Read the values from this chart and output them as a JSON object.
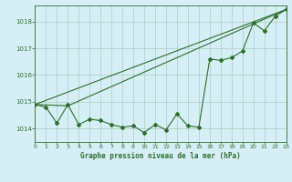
{
  "title": "Graphe pression niveau de la mer (hPa)",
  "background_color": "#d6eef5",
  "grid_color": "#b0d4c8",
  "line_color": "#2d6e2d",
  "xlim": [
    0,
    23
  ],
  "ylim": [
    1013.5,
    1018.6
  ],
  "yticks": [
    1014,
    1015,
    1016,
    1017,
    1018
  ],
  "xticks": [
    0,
    1,
    2,
    3,
    4,
    5,
    6,
    7,
    8,
    9,
    10,
    11,
    12,
    13,
    14,
    15,
    16,
    17,
    18,
    19,
    20,
    21,
    22,
    23
  ],
  "main_line": [
    [
      0,
      1014.9
    ],
    [
      1,
      1014.8
    ],
    [
      2,
      1014.2
    ],
    [
      3,
      1014.9
    ],
    [
      4,
      1014.15
    ],
    [
      5,
      1014.35
    ],
    [
      6,
      1014.3
    ],
    [
      7,
      1014.15
    ],
    [
      8,
      1014.05
    ],
    [
      9,
      1014.1
    ],
    [
      10,
      1013.85
    ],
    [
      11,
      1014.15
    ],
    [
      12,
      1013.95
    ],
    [
      13,
      1014.55
    ],
    [
      14,
      1014.1
    ],
    [
      15,
      1014.05
    ],
    [
      16,
      1016.6
    ],
    [
      17,
      1016.55
    ],
    [
      18,
      1016.65
    ],
    [
      19,
      1016.9
    ],
    [
      20,
      1017.95
    ],
    [
      21,
      1017.65
    ],
    [
      22,
      1018.2
    ],
    [
      23,
      1018.45
    ]
  ],
  "tri_p0": [
    0,
    1014.9
  ],
  "tri_p1": [
    3,
    1014.85
  ],
  "tri_p2": [
    23,
    1018.45
  ]
}
